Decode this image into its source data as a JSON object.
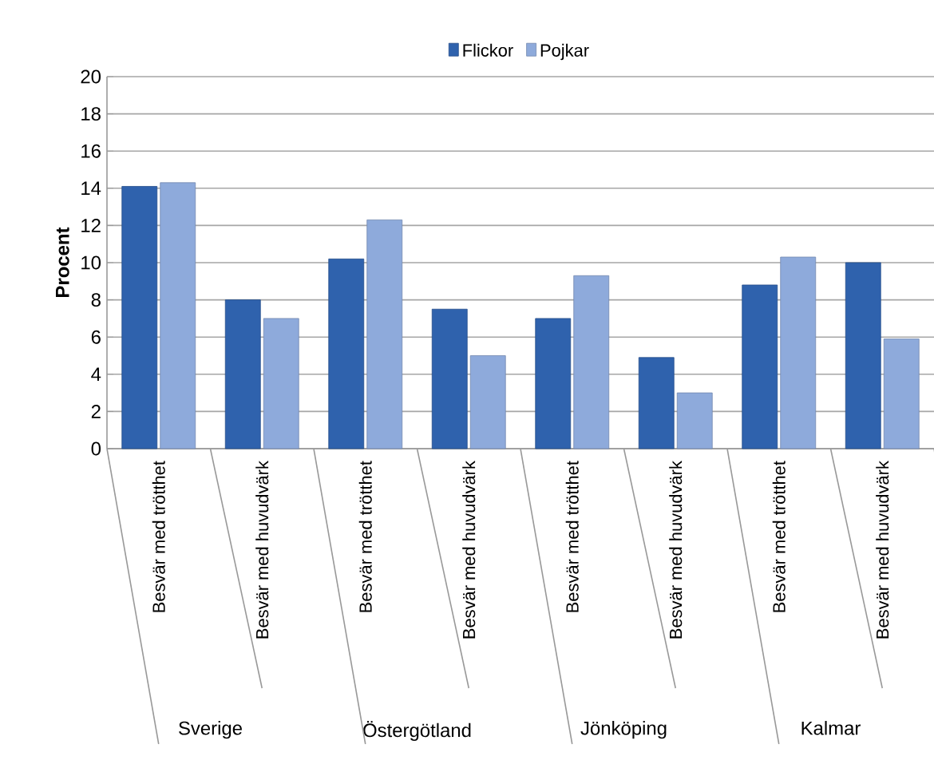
{
  "chart_data": {
    "type": "bar",
    "ylabel": "Procent",
    "categories": [
      "Besvär med trötthet",
      "Besvär med huvudvärk",
      "Besvär med trötthet",
      "Besvär med huvudvärk",
      "Besvär med trötthet",
      "Besvär med huvudvärk",
      "Besvär med trötthet",
      "Besvär med huvudvärk"
    ],
    "series": [
      {
        "name": "Flickor",
        "color": "#2f62ad",
        "values": [
          14.1,
          8.0,
          10.2,
          7.5,
          7.0,
          4.9,
          8.8,
          10.0
        ]
      },
      {
        "name": "Pojkar",
        "color": "#8eaadb",
        "values": [
          14.3,
          7.0,
          12.3,
          5.0,
          9.3,
          3.0,
          10.3,
          5.9
        ]
      }
    ],
    "annotations": [
      "Sverige",
      "Östergötland",
      "Jönköping",
      "Kalmar"
    ],
    "ylim": [
      0,
      20
    ],
    "yticks": [
      0,
      2,
      4,
      6,
      8,
      10,
      12,
      14,
      16,
      18,
      20
    ],
    "grid": "y",
    "legend": "top"
  }
}
